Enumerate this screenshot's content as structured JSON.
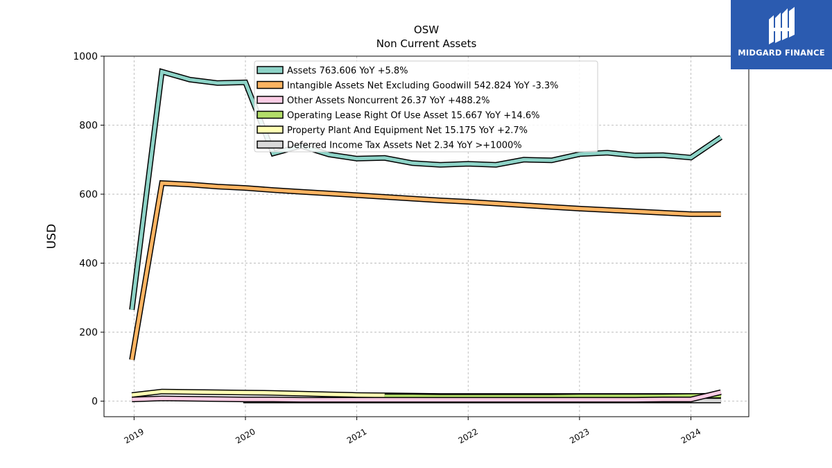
{
  "brand": {
    "name": "MIDGARD FINANCE",
    "bg_color": "#2b5bb0"
  },
  "chart_data": {
    "type": "line",
    "title": "OSW",
    "subtitle": "Non Current  Assets",
    "xlabel": "",
    "ylabel": "USD",
    "ylim": [
      -45,
      1000
    ],
    "xlim": [
      2018.73,
      2024.52
    ],
    "grid": true,
    "legend_position": "top-center",
    "y_ticks": [
      "0",
      "200",
      "400",
      "600",
      "800",
      "1000"
    ],
    "x_ticks": [
      "2019",
      "2020",
      "2021",
      "2022",
      "2023",
      "2024"
    ],
    "x_tick_values": [
      2019,
      2020,
      2021,
      2022,
      2023,
      2024
    ],
    "series": [
      {
        "name": "Assets",
        "legend": "Assets  763.606 YoY +5.8%",
        "color": "#8dd3c7",
        "points": [
          [
            2018.98,
            265
          ],
          [
            2019.25,
            955
          ],
          [
            2019.5,
            932
          ],
          [
            2019.75,
            922
          ],
          [
            2020.0,
            924
          ],
          [
            2020.25,
            718
          ],
          [
            2020.5,
            740
          ],
          [
            2020.75,
            715
          ],
          [
            2021.0,
            703
          ],
          [
            2021.25,
            705
          ],
          [
            2021.5,
            690
          ],
          [
            2021.75,
            685
          ],
          [
            2022.0,
            688
          ],
          [
            2022.25,
            685
          ],
          [
            2022.5,
            700
          ],
          [
            2022.75,
            698
          ],
          [
            2023.0,
            716
          ],
          [
            2023.25,
            720
          ],
          [
            2023.5,
            712
          ],
          [
            2023.75,
            713
          ],
          [
            2024.0,
            706
          ],
          [
            2024.27,
            765
          ]
        ]
      },
      {
        "name": "Intangible Assets Net Excluding Goodwill",
        "legend": "Intangible Assets Net Excluding Goodwill  542.824 YoY -3.3%",
        "color": "#fdb462",
        "points": [
          [
            2018.98,
            120
          ],
          [
            2019.25,
            632
          ],
          [
            2019.5,
            628
          ],
          [
            2019.75,
            622
          ],
          [
            2020.0,
            618
          ],
          [
            2020.25,
            612
          ],
          [
            2020.5,
            607
          ],
          [
            2020.75,
            602
          ],
          [
            2021.0,
            597
          ],
          [
            2021.25,
            592
          ],
          [
            2021.5,
            587
          ],
          [
            2021.75,
            582
          ],
          [
            2022.0,
            578
          ],
          [
            2022.25,
            573
          ],
          [
            2022.5,
            568
          ],
          [
            2022.75,
            563
          ],
          [
            2023.0,
            558
          ],
          [
            2023.25,
            554
          ],
          [
            2023.5,
            550
          ],
          [
            2023.75,
            546
          ],
          [
            2024.0,
            542
          ],
          [
            2024.27,
            542
          ]
        ]
      },
      {
        "name": "Other Assets Noncurrent",
        "legend": "Other Assets Noncurrent  26.37 YoY +488.2%",
        "color": "#fccde5",
        "points": [
          [
            2018.98,
            5
          ],
          [
            2019.25,
            8
          ],
          [
            2019.5,
            7
          ],
          [
            2019.75,
            6
          ],
          [
            2020.0,
            5
          ],
          [
            2020.25,
            5
          ],
          [
            2020.5,
            4
          ],
          [
            2020.75,
            4
          ],
          [
            2021.0,
            4
          ],
          [
            2021.25,
            4
          ],
          [
            2021.5,
            4
          ],
          [
            2021.75,
            4
          ],
          [
            2022.0,
            4
          ],
          [
            2022.25,
            4
          ],
          [
            2022.5,
            4
          ],
          [
            2022.75,
            4
          ],
          [
            2023.0,
            4
          ],
          [
            2023.25,
            4
          ],
          [
            2023.5,
            4
          ],
          [
            2023.75,
            5
          ],
          [
            2024.0,
            5
          ],
          [
            2024.27,
            26
          ]
        ]
      },
      {
        "name": "Operating Lease Right Of Use Asset",
        "legend": "Operating Lease Right Of Use Asset  15.667 YoY +14.6%",
        "color": "#b3de69",
        "points": [
          [
            2021.25,
            14
          ],
          [
            2021.5,
            14
          ],
          [
            2021.75,
            13
          ],
          [
            2022.0,
            13
          ],
          [
            2022.25,
            13
          ],
          [
            2022.5,
            13
          ],
          [
            2022.75,
            13
          ],
          [
            2023.0,
            14
          ],
          [
            2023.25,
            14
          ],
          [
            2023.5,
            14
          ],
          [
            2023.75,
            14
          ],
          [
            2024.0,
            15
          ],
          [
            2024.27,
            16
          ]
        ]
      },
      {
        "name": "Property Plant And Equipment Net",
        "legend": "Property Plant And Equipment Net  15.175 YoY +2.7%",
        "color": "#ffffb3",
        "points": [
          [
            2018.98,
            18
          ],
          [
            2019.25,
            28
          ],
          [
            2019.5,
            27
          ],
          [
            2019.75,
            26
          ],
          [
            2020.0,
            25
          ],
          [
            2020.25,
            24
          ],
          [
            2020.5,
            22
          ],
          [
            2020.75,
            20
          ],
          [
            2021.0,
            18
          ],
          [
            2021.25,
            17
          ],
          [
            2021.5,
            16
          ],
          [
            2021.75,
            15
          ],
          [
            2022.0,
            15
          ],
          [
            2022.25,
            15
          ],
          [
            2022.5,
            15
          ],
          [
            2022.75,
            15
          ],
          [
            2023.0,
            15
          ],
          [
            2023.25,
            15
          ],
          [
            2023.5,
            15
          ],
          [
            2023.75,
            15
          ],
          [
            2024.0,
            15
          ],
          [
            2024.27,
            15
          ]
        ]
      },
      {
        "name": "Deferred Income Tax Assets Net",
        "legend": "Deferred Income Tax Assets Net  2.34 YoY >+1000%",
        "color": "#d9d9d9",
        "points": [
          [
            2019.98,
            2
          ],
          [
            2020.25,
            2
          ],
          [
            2020.5,
            2
          ],
          [
            2020.75,
            2
          ],
          [
            2021.0,
            2
          ],
          [
            2021.25,
            2
          ],
          [
            2021.5,
            2
          ],
          [
            2021.75,
            2
          ],
          [
            2022.0,
            2
          ],
          [
            2022.25,
            2
          ],
          [
            2022.5,
            2
          ],
          [
            2022.75,
            2
          ],
          [
            2023.0,
            2
          ],
          [
            2023.25,
            2
          ],
          [
            2023.5,
            2
          ],
          [
            2023.75,
            2
          ],
          [
            2024.0,
            2
          ],
          [
            2024.27,
            2
          ]
        ]
      }
    ]
  }
}
